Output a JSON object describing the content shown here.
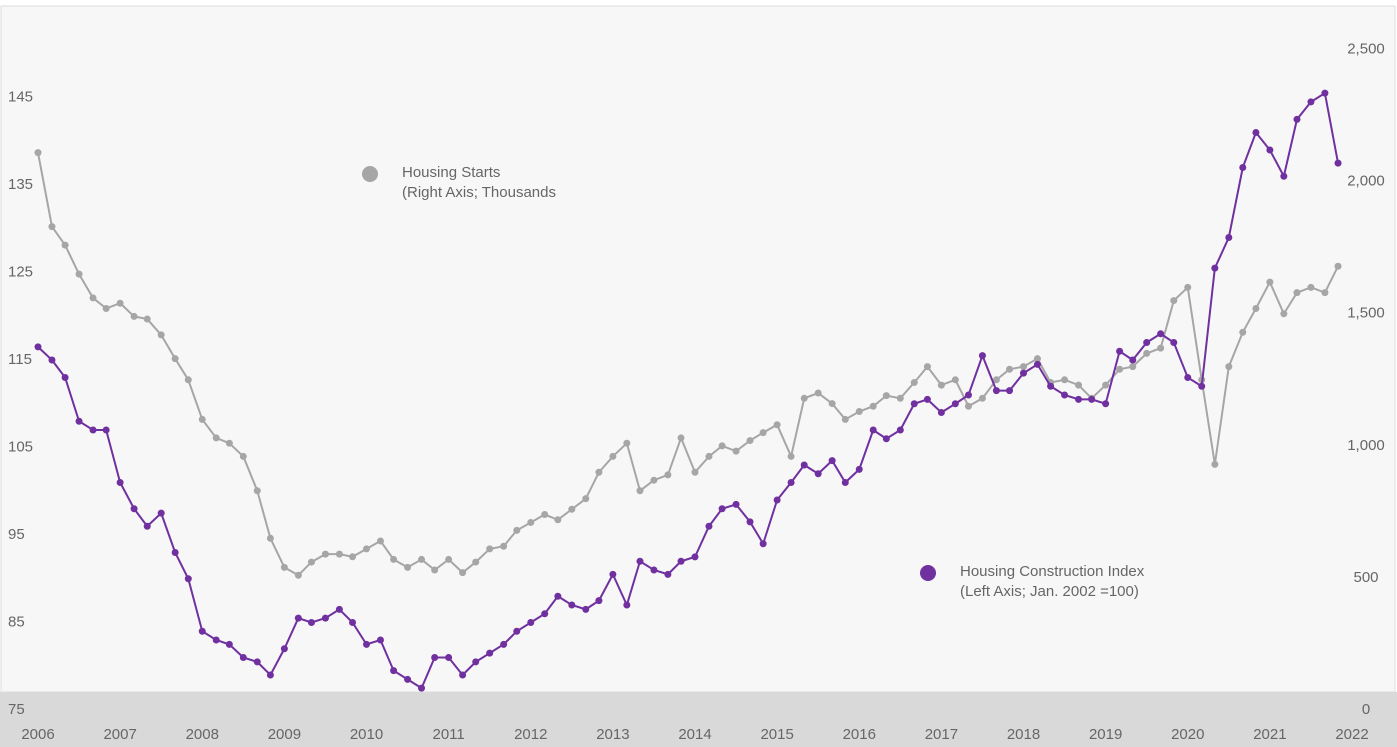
{
  "chart_data": {
    "type": "line",
    "x": [
      2006,
      2006.17,
      2006.33,
      2006.5,
      2006.67,
      2006.83,
      2007,
      2007.17,
      2007.33,
      2007.5,
      2007.67,
      2007.83,
      2008,
      2008.17,
      2008.33,
      2008.5,
      2008.67,
      2008.83,
      2009,
      2009.17,
      2009.33,
      2009.5,
      2009.67,
      2009.83,
      2010,
      2010.17,
      2010.33,
      2010.5,
      2010.67,
      2010.83,
      2011,
      2011.17,
      2011.33,
      2011.5,
      2011.67,
      2011.83,
      2012,
      2012.17,
      2012.33,
      2012.5,
      2012.67,
      2012.83,
      2013,
      2013.17,
      2013.33,
      2013.5,
      2013.67,
      2013.83,
      2014,
      2014.17,
      2014.33,
      2014.5,
      2014.67,
      2014.83,
      2015,
      2015.17,
      2015.33,
      2015.5,
      2015.67,
      2015.83,
      2016,
      2016.17,
      2016.33,
      2016.5,
      2016.67,
      2016.83,
      2017,
      2017.17,
      2017.33,
      2017.5,
      2017.67,
      2017.83,
      2018,
      2018.17,
      2018.33,
      2018.5,
      2018.67,
      2018.83,
      2019,
      2019.17,
      2019.33,
      2019.5,
      2019.67,
      2019.83,
      2020,
      2020.17,
      2020.33,
      2020.5,
      2020.67,
      2020.83,
      2021,
      2021.17,
      2021.33,
      2021.5,
      2021.67,
      2021.83
    ],
    "series": [
      {
        "name": "Housing Starts",
        "legend_note": "(Right Axis; Thousands",
        "color": "#a6a6a6",
        "axis": "y2",
        "values": [
          2110,
          1830,
          1760,
          1650,
          1560,
          1520,
          1540,
          1490,
          1480,
          1420,
          1330,
          1250,
          1100,
          1030,
          1010,
          960,
          830,
          650,
          540,
          510,
          560,
          590,
          590,
          580,
          610,
          640,
          570,
          540,
          570,
          530,
          570,
          520,
          560,
          610,
          620,
          680,
          710,
          740,
          720,
          760,
          800,
          900,
          960,
          1010,
          830,
          870,
          890,
          1030,
          900,
          960,
          1000,
          980,
          1020,
          1050,
          1080,
          960,
          1180,
          1200,
          1160,
          1100,
          1130,
          1150,
          1190,
          1180,
          1240,
          1300,
          1230,
          1250,
          1150,
          1180,
          1250,
          1290,
          1300,
          1330,
          1240,
          1250,
          1230,
          1180,
          1230,
          1290,
          1300,
          1350,
          1370,
          1550,
          1600,
          1250,
          930,
          1300,
          1430,
          1520,
          1620,
          1500,
          1580,
          1600,
          1580,
          1680
        ]
      },
      {
        "name": "Housing Construction Index",
        "legend_note": "(Left Axis; Jan. 2002 =100)",
        "color": "#7030a0",
        "axis": "y",
        "values": [
          116.5,
          115,
          113,
          108,
          107,
          107,
          101,
          98,
          96,
          97.5,
          93,
          90,
          84,
          83,
          82.5,
          81,
          80.5,
          79,
          82,
          85.5,
          85,
          85.5,
          86.5,
          85,
          82.5,
          83,
          79.5,
          78.5,
          77.5,
          81,
          81,
          79,
          80.5,
          81.5,
          82.5,
          84,
          85,
          86,
          88,
          87,
          86.5,
          87.5,
          90.5,
          87,
          92,
          91,
          90.5,
          92,
          92.5,
          96,
          98,
          98.5,
          96.5,
          94,
          99,
          101,
          103,
          102,
          103.5,
          101,
          102.5,
          107,
          106,
          107,
          110,
          110.5,
          109,
          110,
          111,
          115.5,
          111.5,
          111.5,
          113.5,
          114.5,
          112,
          111,
          110.5,
          110.5,
          110,
          116,
          115,
          117,
          118,
          117,
          113,
          112,
          125.5,
          129,
          137,
          141,
          139,
          136,
          142.5,
          144.5,
          145.5,
          137.5
        ]
      }
    ],
    "xlim": [
      2006,
      2022
    ],
    "xticks": [
      2006,
      2007,
      2008,
      2009,
      2010,
      2011,
      2012,
      2013,
      2014,
      2015,
      2016,
      2017,
      2018,
      2019,
      2020,
      2021,
      2022
    ],
    "ylim": [
      75,
      155
    ],
    "yticks": [
      75,
      85,
      95,
      105,
      115,
      125,
      135,
      145
    ],
    "y2lim": [
      0,
      2650
    ],
    "y2ticks": [
      0,
      500,
      {
        "value": 1000,
        "label": "1,000"
      },
      {
        "value": 1500,
        "label": "1,500"
      },
      {
        "value": 2000,
        "label": "2,000"
      },
      {
        "value": 2500,
        "label": "2,500"
      }
    ]
  }
}
